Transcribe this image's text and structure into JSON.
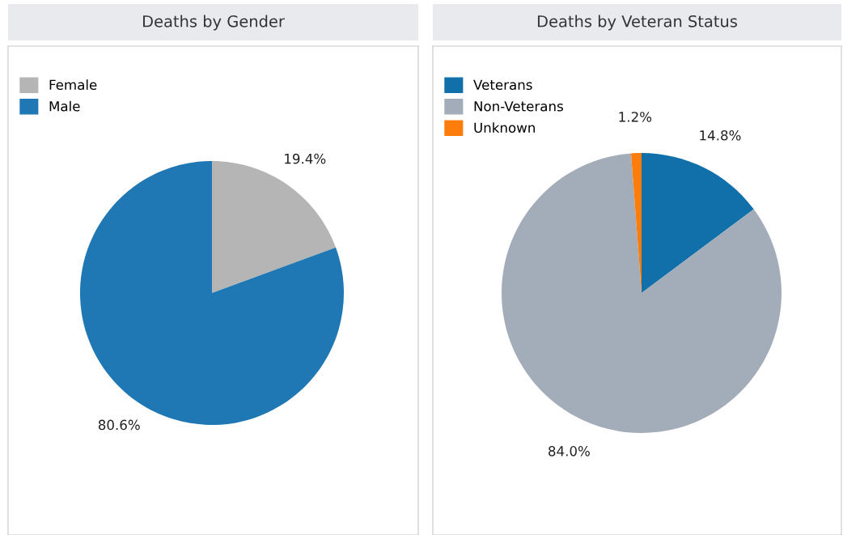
{
  "chart_data": [
    {
      "type": "pie",
      "title": "Deaths by Gender",
      "categories": [
        "Female",
        "Male"
      ],
      "values": [
        19.4,
        80.6
      ],
      "colors": [
        "#b5b5b5",
        "#1f77b4"
      ],
      "value_labels": [
        "19.4%",
        "80.6%"
      ],
      "legend": "top left"
    },
    {
      "type": "pie",
      "title": "Deaths by Veteran Status",
      "categories": [
        "Veterans",
        "Non-Veterans",
        "Unknown"
      ],
      "values": [
        14.8,
        84.0,
        1.2
      ],
      "colors": [
        "#1170aa",
        "#a3acb9",
        "#fc7d0b"
      ],
      "value_labels": [
        "14.8%",
        "84.0%",
        "1.2%"
      ],
      "legend": "top left"
    }
  ]
}
